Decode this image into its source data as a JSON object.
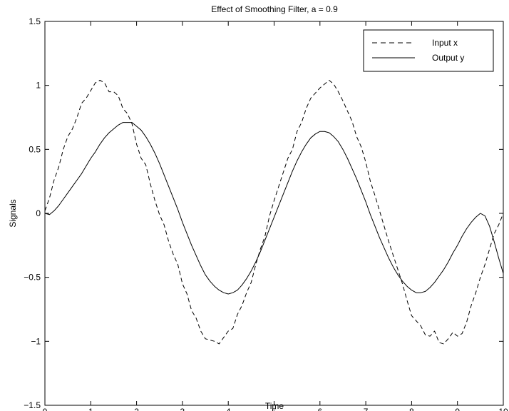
{
  "chart_data": {
    "type": "line",
    "title": "Effect of Smoothing Filter, a = 0.9",
    "xlabel": "Time",
    "ylabel": "Signals",
    "xlim": [
      0,
      10
    ],
    "ylim": [
      -1.5,
      1.5
    ],
    "xticks": [
      0,
      1,
      2,
      3,
      4,
      5,
      6,
      7,
      8,
      9,
      10
    ],
    "yticks": [
      -1.5,
      -1,
      -0.5,
      0,
      0.5,
      1,
      1.5
    ],
    "xtick_labels": [
      "0",
      "1",
      "2",
      "3",
      "4",
      "5",
      "6",
      "7",
      "8",
      "9",
      "10"
    ],
    "ytick_labels": [
      "−1.5",
      "−1",
      "−0.5",
      "0",
      "0.5",
      "1",
      "1.5"
    ],
    "grid": false,
    "legend_position": "top-right",
    "series": [
      {
        "name": "Input x",
        "style": "dashed",
        "color": "#000000",
        "x": [
          0,
          0.1,
          0.2,
          0.3,
          0.4,
          0.5,
          0.6,
          0.7,
          0.8,
          0.9,
          1.0,
          1.1,
          1.2,
          1.3,
          1.4,
          1.5,
          1.6,
          1.7,
          1.8,
          1.9,
          2.0,
          2.1,
          2.2,
          2.3,
          2.4,
          2.5,
          2.6,
          2.7,
          2.8,
          2.9,
          3.0,
          3.1,
          3.2,
          3.3,
          3.4,
          3.5,
          3.6,
          3.7,
          3.8,
          3.9,
          4.0,
          4.1,
          4.2,
          4.3,
          4.4,
          4.5,
          4.6,
          4.7,
          4.8,
          4.9,
          5.0,
          5.1,
          5.2,
          5.3,
          5.4,
          5.5,
          5.6,
          5.7,
          5.8,
          5.9,
          6.0,
          6.1,
          6.2,
          6.3,
          6.4,
          6.5,
          6.6,
          6.7,
          6.8,
          6.9,
          7.0,
          7.1,
          7.2,
          7.3,
          7.4,
          7.5,
          7.6,
          7.7,
          7.8,
          7.9,
          8.0,
          8.1,
          8.2,
          8.3,
          8.4,
          8.5,
          8.6,
          8.7,
          8.8,
          8.9,
          9.0,
          9.1,
          9.2,
          9.3,
          9.4,
          9.5,
          9.6,
          9.7,
          9.8,
          9.9,
          10.0
        ],
        "y": [
          0.02,
          0.12,
          0.26,
          0.36,
          0.5,
          0.6,
          0.66,
          0.75,
          0.86,
          0.9,
          0.96,
          1.02,
          1.04,
          1.02,
          0.95,
          0.95,
          0.92,
          0.82,
          0.78,
          0.7,
          0.54,
          0.43,
          0.38,
          0.23,
          0.1,
          -0.01,
          -0.09,
          -0.22,
          -0.32,
          -0.4,
          -0.55,
          -0.63,
          -0.76,
          -0.82,
          -0.92,
          -0.98,
          -0.99,
          -1.0,
          -1.02,
          -0.97,
          -0.92,
          -0.9,
          -0.79,
          -0.72,
          -0.62,
          -0.54,
          -0.4,
          -0.28,
          -0.18,
          -0.02,
          0.1,
          0.21,
          0.32,
          0.43,
          0.5,
          0.64,
          0.71,
          0.82,
          0.9,
          0.94,
          0.98,
          1.01,
          1.04,
          1.01,
          0.95,
          0.88,
          0.8,
          0.72,
          0.6,
          0.52,
          0.4,
          0.25,
          0.14,
          0.02,
          -0.1,
          -0.22,
          -0.33,
          -0.44,
          -0.55,
          -0.68,
          -0.8,
          -0.84,
          -0.88,
          -0.95,
          -0.96,
          -0.92,
          -1.01,
          -1.02,
          -0.98,
          -0.93,
          -0.96,
          -0.94,
          -0.85,
          -0.72,
          -0.62,
          -0.5,
          -0.4,
          -0.28,
          -0.16,
          -0.09,
          0.0
        ]
      },
      {
        "name": "Output y",
        "style": "solid",
        "color": "#000000",
        "x": [
          0,
          0.1,
          0.2,
          0.3,
          0.4,
          0.5,
          0.6,
          0.7,
          0.8,
          0.9,
          1.0,
          1.1,
          1.2,
          1.3,
          1.4,
          1.5,
          1.6,
          1.7,
          1.8,
          1.9,
          2.0,
          2.1,
          2.2,
          2.3,
          2.4,
          2.5,
          2.6,
          2.7,
          2.8,
          2.9,
          3.0,
          3.1,
          3.2,
          3.3,
          3.4,
          3.5,
          3.6,
          3.7,
          3.8,
          3.9,
          4.0,
          4.1,
          4.2,
          4.3,
          4.4,
          4.5,
          4.6,
          4.7,
          4.8,
          4.9,
          5.0,
          5.1,
          5.2,
          5.3,
          5.4,
          5.5,
          5.6,
          5.7,
          5.8,
          5.9,
          6.0,
          6.1,
          6.2,
          6.3,
          6.4,
          6.5,
          6.6,
          6.7,
          6.8,
          6.9,
          7.0,
          7.1,
          7.2,
          7.3,
          7.4,
          7.5,
          7.6,
          7.7,
          7.8,
          7.9,
          8.0,
          8.1,
          8.2,
          8.3,
          8.4,
          8.5,
          8.6,
          8.7,
          8.8,
          8.9,
          9.0,
          9.1,
          9.2,
          9.3,
          9.4,
          9.5,
          9.6,
          9.7,
          9.8,
          9.9,
          10.0
        ],
        "y": [
          0.0,
          -0.01,
          0.02,
          0.06,
          0.11,
          0.16,
          0.21,
          0.26,
          0.31,
          0.37,
          0.43,
          0.48,
          0.54,
          0.59,
          0.63,
          0.66,
          0.69,
          0.71,
          0.71,
          0.71,
          0.68,
          0.65,
          0.6,
          0.54,
          0.47,
          0.39,
          0.3,
          0.21,
          0.12,
          0.03,
          -0.07,
          -0.16,
          -0.25,
          -0.33,
          -0.41,
          -0.48,
          -0.53,
          -0.57,
          -0.6,
          -0.62,
          -0.63,
          -0.62,
          -0.6,
          -0.56,
          -0.51,
          -0.45,
          -0.38,
          -0.3,
          -0.21,
          -0.12,
          -0.03,
          0.06,
          0.15,
          0.24,
          0.33,
          0.41,
          0.48,
          0.54,
          0.59,
          0.62,
          0.64,
          0.64,
          0.63,
          0.6,
          0.56,
          0.5,
          0.43,
          0.35,
          0.27,
          0.18,
          0.09,
          -0.01,
          -0.1,
          -0.19,
          -0.27,
          -0.35,
          -0.42,
          -0.48,
          -0.53,
          -0.57,
          -0.6,
          -0.62,
          -0.62,
          -0.61,
          -0.58,
          -0.54,
          -0.49,
          -0.44,
          -0.38,
          -0.31,
          -0.25,
          -0.18,
          -0.12,
          -0.07,
          -0.03,
          0.0,
          -0.02,
          -0.1,
          -0.22,
          -0.35,
          -0.47
        ]
      }
    ]
  }
}
